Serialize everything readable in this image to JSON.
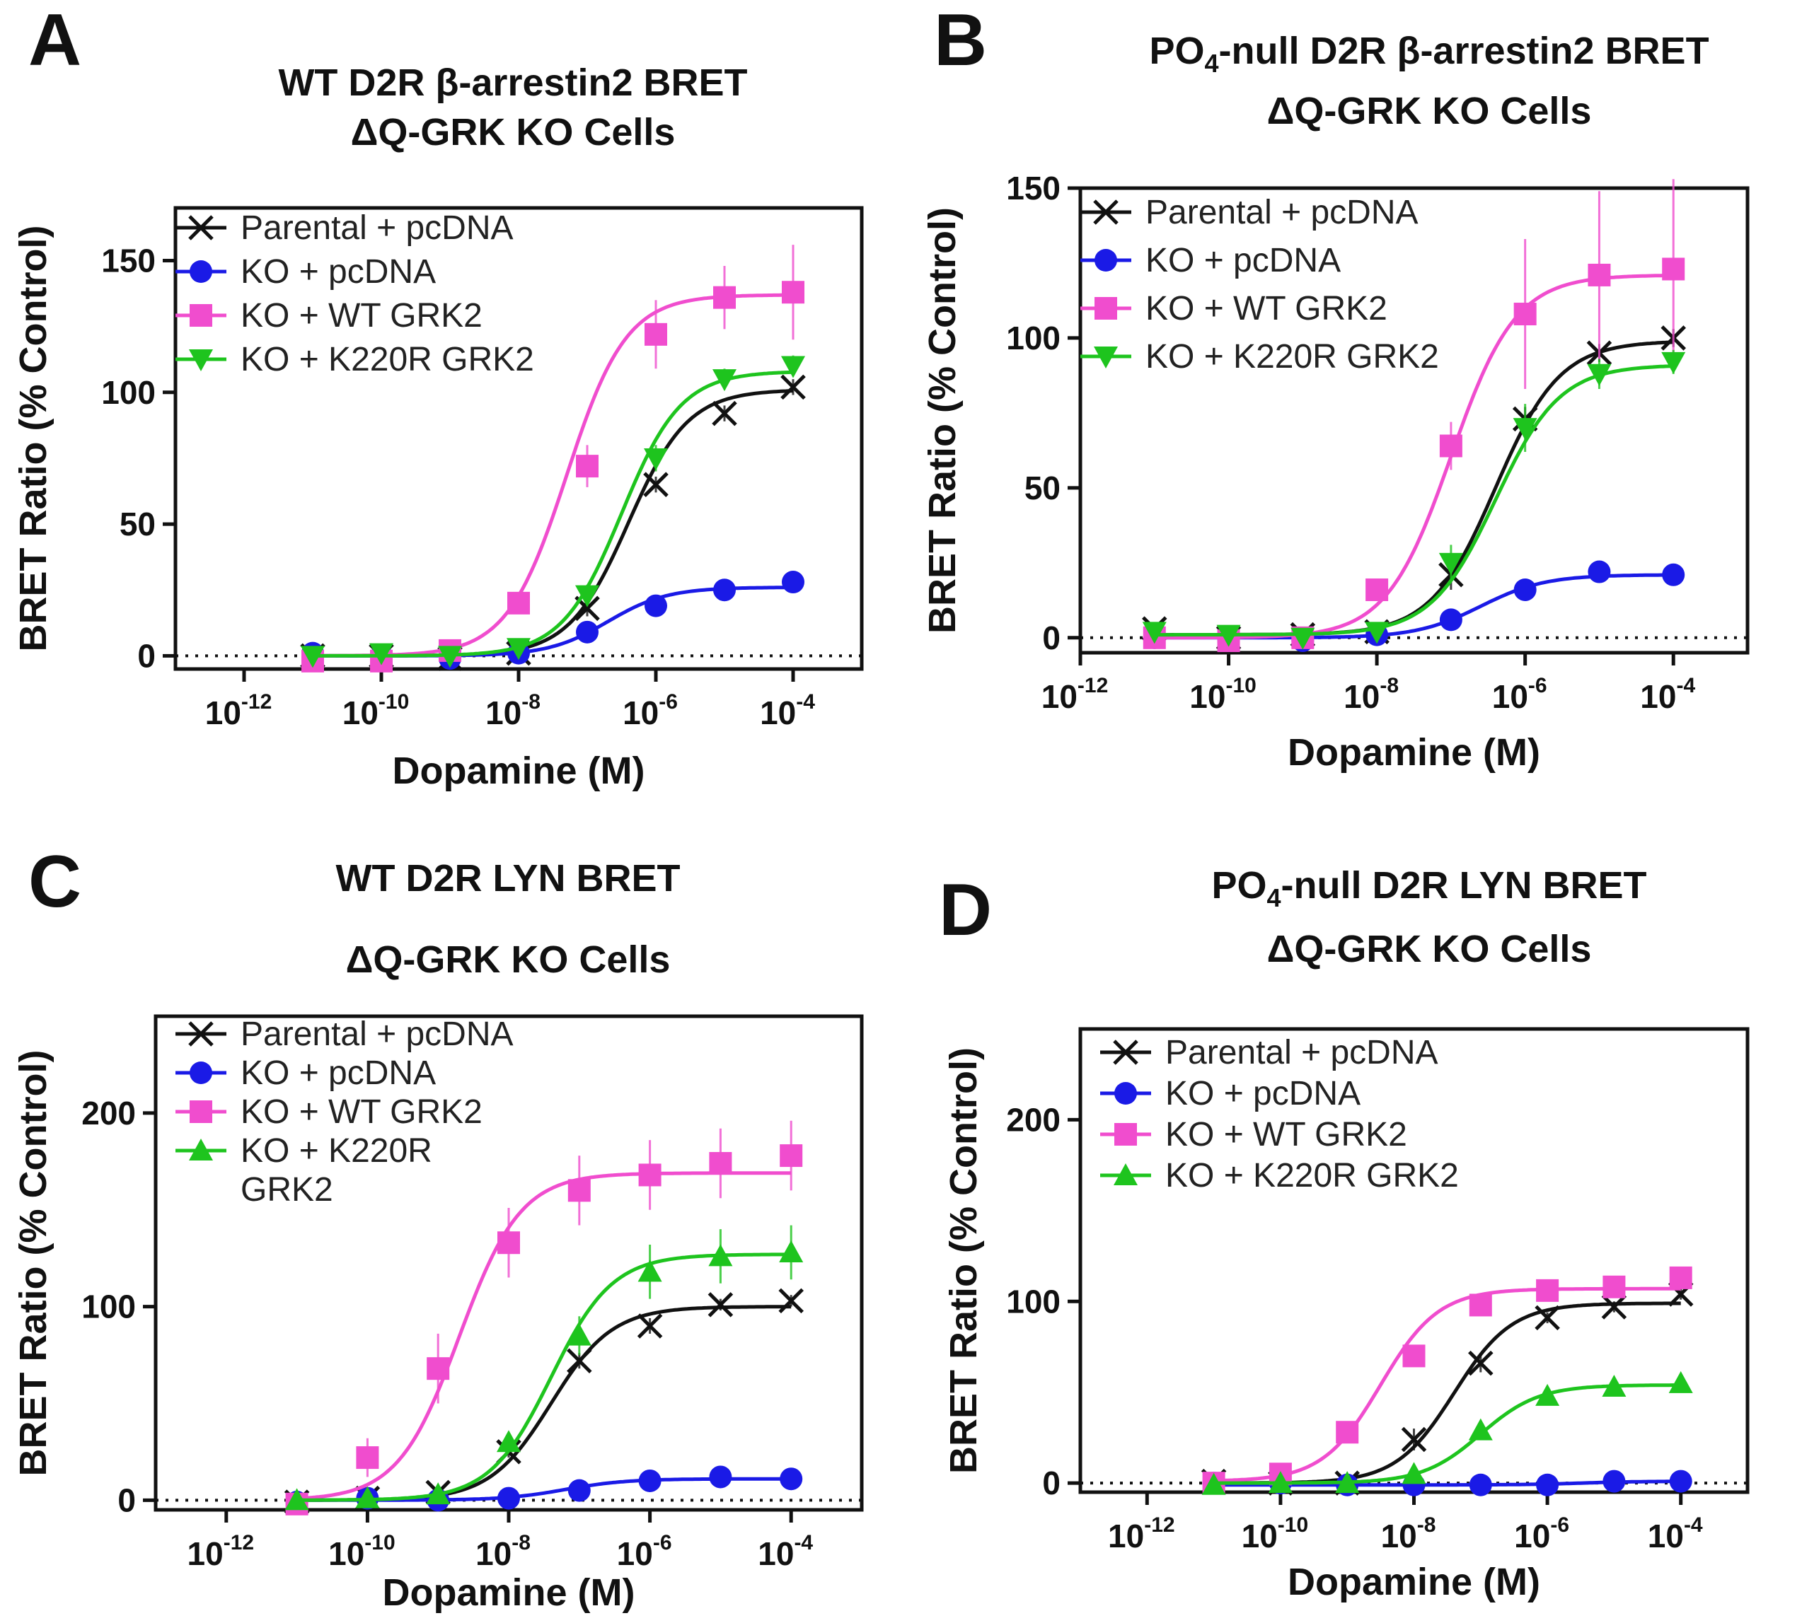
{
  "chart_data": [
    {
      "panel": "A",
      "type": "line",
      "title_lines": [
        "WT D2R β-arrestin2 BRET",
        "ΔQ-GRK KO Cells"
      ],
      "xlabel": "Dopamine (M)",
      "ylabel": "BRET Ratio (% Control)",
      "x_scale": "log10",
      "xlim": [
        -13,
        -3
      ],
      "ylim": [
        -5,
        170
      ],
      "y_ticks": [
        0,
        50,
        100,
        150
      ],
      "x_ticks": [
        -12,
        -10,
        -8,
        -6,
        -4
      ],
      "tick_base": "10",
      "reference_line_y": 0,
      "series": [
        {
          "name": "Parental + pcDNA",
          "marker": "x",
          "color": "#111111",
          "x": [
            -11,
            -10,
            -9,
            -8,
            -7,
            -6,
            -5,
            -4
          ],
          "y": [
            0,
            0,
            -1,
            1,
            18,
            65,
            92,
            102
          ],
          "error": [
            1,
            1,
            1,
            1,
            3,
            3,
            3,
            3
          ],
          "fit": {
            "bottom": 0,
            "top": 101,
            "logEC50": -6.4,
            "hill": 1.0
          }
        },
        {
          "name": "KO + pcDNA",
          "marker": "circle",
          "color": "#1a1ae6",
          "x": [
            -11,
            -10,
            -9,
            -8,
            -7,
            -6,
            -5,
            -4
          ],
          "y": [
            1,
            0,
            -1,
            1,
            9,
            19,
            25,
            28
          ],
          "error": [
            1,
            1,
            1,
            1,
            2,
            2,
            2,
            2
          ],
          "fit": {
            "bottom": 0,
            "top": 26,
            "logEC50": -6.7,
            "hill": 1.0
          }
        },
        {
          "name": "KO + WT GRK2",
          "marker": "square",
          "color": "#f04dce",
          "x": [
            -11,
            -10,
            -9,
            -8,
            -7,
            -6,
            -5,
            -4
          ],
          "y": [
            -2,
            -2,
            2,
            20,
            72,
            122,
            136,
            138
          ],
          "error": [
            2,
            2,
            2,
            3,
            8,
            13,
            12,
            18
          ],
          "fit": {
            "bottom": 0,
            "top": 137,
            "logEC50": -7.3,
            "hill": 1.0
          }
        },
        {
          "name": "KO + K220R GRK2",
          "marker": "triangle-down",
          "color": "#1ec41e",
          "x": [
            -11,
            -10,
            -9,
            -8,
            -7,
            -6,
            -5,
            -4
          ],
          "y": [
            0,
            1,
            0,
            3,
            23,
            75,
            105,
            110
          ],
          "error": [
            1,
            1,
            1,
            2,
            4,
            5,
            4,
            4
          ],
          "fit": {
            "bottom": 0,
            "top": 108,
            "logEC50": -6.5,
            "hill": 1.0
          }
        }
      ]
    },
    {
      "panel": "B",
      "type": "line",
      "title_lines": [
        "PO4-null D2R β-arrestin2 BRET",
        "ΔQ-GRK KO Cells"
      ],
      "xlabel": "Dopamine (M)",
      "ylabel": "BRET Ratio (% Control)",
      "x_scale": "log10",
      "xlim": [
        -12,
        -3
      ],
      "ylim": [
        -5,
        150
      ],
      "y_ticks": [
        0,
        50,
        100,
        150
      ],
      "x_ticks": [
        -12,
        -10,
        -8,
        -6,
        -4
      ],
      "tick_base": "10",
      "reference_line_y": 0,
      "series": [
        {
          "name": "Parental + pcDNA",
          "marker": "x",
          "color": "#111111",
          "x": [
            -11,
            -10,
            -9,
            -8,
            -7,
            -6,
            -5,
            -4
          ],
          "y": [
            3,
            0,
            1,
            2,
            21,
            73,
            95,
            100
          ],
          "error": [
            1,
            1,
            1,
            2,
            5,
            4,
            3,
            3
          ],
          "fit": {
            "bottom": 1,
            "top": 99,
            "logEC50": -6.4,
            "hill": 1.0
          }
        },
        {
          "name": "KO + pcDNA",
          "marker": "circle",
          "color": "#1a1ae6",
          "x": [
            -11,
            -10,
            -9,
            -8,
            -7,
            -6,
            -5,
            -4
          ],
          "y": [
            0,
            -1,
            -1,
            1,
            6,
            16,
            22,
            21
          ],
          "error": [
            1,
            1,
            1,
            1,
            1,
            2,
            2,
            2
          ],
          "fit": {
            "bottom": 0,
            "top": 21,
            "logEC50": -6.6,
            "hill": 1.0
          }
        },
        {
          "name": "KO + WT GRK2",
          "marker": "square",
          "color": "#f04dce",
          "x": [
            -11,
            -10,
            -9,
            -8,
            -7,
            -6,
            -5,
            -4
          ],
          "y": [
            0,
            -1,
            0,
            16,
            64,
            108,
            121,
            123
          ],
          "error": [
            2,
            2,
            1,
            3,
            8,
            25,
            28,
            30
          ],
          "fit": {
            "bottom": 0,
            "top": 121,
            "logEC50": -7.0,
            "hill": 1.0
          }
        },
        {
          "name": "KO + K220R GRK2",
          "marker": "triangle-down",
          "color": "#1ec41e",
          "x": [
            -11,
            -10,
            -9,
            -8,
            -7,
            -6,
            -5,
            -4
          ],
          "y": [
            2,
            1,
            0,
            2,
            25,
            70,
            88,
            92
          ],
          "error": [
            1,
            1,
            1,
            2,
            6,
            8,
            5,
            4
          ],
          "fit": {
            "bottom": 1,
            "top": 91,
            "logEC50": -6.4,
            "hill": 1.0
          }
        }
      ]
    },
    {
      "panel": "C",
      "type": "line",
      "title_lines": [
        "WT D2R LYN BRET",
        "ΔQ-GRK KO Cells"
      ],
      "xlabel": "Dopamine (M)",
      "ylabel": "BRET Ratio (% Control)",
      "x_scale": "log10",
      "xlim": [
        -13,
        -3
      ],
      "ylim": [
        -5,
        250
      ],
      "y_ticks": [
        0,
        100,
        200
      ],
      "x_ticks": [
        -12,
        -10,
        -8,
        -6,
        -4
      ],
      "tick_base": "10",
      "reference_line_y": 0,
      "series": [
        {
          "name": "Parental + pcDNA",
          "marker": "x",
          "color": "#111111",
          "x": [
            -11,
            -10,
            -9,
            -8,
            -7,
            -6,
            -5,
            -4
          ],
          "y": [
            -1,
            1,
            4,
            25,
            72,
            90,
            101,
            103
          ],
          "error": [
            1,
            1,
            2,
            3,
            4,
            4,
            3,
            3
          ],
          "fit": {
            "bottom": 0,
            "top": 100,
            "logEC50": -7.4,
            "hill": 1.0
          }
        },
        {
          "name": "KO + pcDNA",
          "marker": "circle",
          "color": "#1a1ae6",
          "x": [
            -11,
            -10,
            -9,
            -8,
            -7,
            -6,
            -5,
            -4
          ],
          "y": [
            -1,
            1,
            0,
            1,
            5,
            10,
            12,
            11
          ],
          "error": [
            1,
            1,
            1,
            1,
            1,
            1,
            1,
            1
          ],
          "fit": {
            "bottom": 0,
            "top": 11,
            "logEC50": -7.2,
            "hill": 1.0
          }
        },
        {
          "name": "KO + WT GRK2",
          "marker": "square",
          "color": "#f04dce",
          "x": [
            -11,
            -10,
            -9,
            -8,
            -7,
            -6,
            -5,
            -4
          ],
          "y": [
            -2,
            22,
            68,
            133,
            160,
            168,
            174,
            178
          ],
          "error": [
            2,
            10,
            18,
            18,
            18,
            18,
            18,
            18
          ],
          "fit": {
            "bottom": 0,
            "top": 169,
            "logEC50": -8.7,
            "hill": 1.0
          }
        },
        {
          "name": "KO + K220R GRK2",
          "marker": "triangle-up",
          "color": "#1ec41e",
          "x": [
            -11,
            -10,
            -9,
            -8,
            -7,
            -6,
            -5,
            -4
          ],
          "y": [
            0,
            1,
            3,
            30,
            85,
            118,
            126,
            128
          ],
          "error": [
            1,
            1,
            2,
            5,
            10,
            14,
            14,
            14
          ],
          "fit": {
            "bottom": 0,
            "top": 127,
            "logEC50": -7.4,
            "hill": 1.0
          }
        }
      ]
    },
    {
      "panel": "D",
      "type": "line",
      "title_lines": [
        "PO4-null D2R LYN BRET",
        "ΔQ-GRK KO Cells"
      ],
      "xlabel": "Dopamine (M)",
      "ylabel": "BRET Ratio (% Control)",
      "x_scale": "log10",
      "xlim": [
        -13,
        -3
      ],
      "ylim": [
        -5,
        250
      ],
      "y_ticks": [
        0,
        100,
        200
      ],
      "x_ticks": [
        -12,
        -10,
        -8,
        -6,
        -4
      ],
      "tick_base": "10",
      "reference_line_y": 0,
      "series": [
        {
          "name": "Parental + pcDNA",
          "marker": "x",
          "color": "#111111",
          "x": [
            -11,
            -10,
            -9,
            -8,
            -7,
            -6,
            -5,
            -4
          ],
          "y": [
            1,
            0,
            0,
            24,
            66,
            91,
            97,
            104
          ],
          "error": [
            1,
            1,
            1,
            6,
            5,
            3,
            3,
            3
          ],
          "fit": {
            "bottom": 0,
            "top": 99,
            "logEC50": -7.4,
            "hill": 1.0
          }
        },
        {
          "name": "KO + pcDNA",
          "marker": "circle",
          "color": "#1a1ae6",
          "x": [
            -11,
            -10,
            -9,
            -8,
            -7,
            -6,
            -5,
            -4
          ],
          "y": [
            0,
            0,
            -1,
            -1,
            -1,
            -1,
            1,
            1
          ],
          "error": [
            1,
            1,
            1,
            1,
            1,
            1,
            1,
            1
          ],
          "fit": {
            "bottom": -1,
            "top": 1,
            "logEC50": -5.5,
            "hill": 1.0
          }
        },
        {
          "name": "KO + WT GRK2",
          "marker": "square",
          "color": "#f04dce",
          "x": [
            -11,
            -10,
            -9,
            -8,
            -7,
            -6,
            -5,
            -4
          ],
          "y": [
            0,
            5,
            28,
            70,
            98,
            106,
            108,
            113
          ],
          "error": [
            2,
            2,
            3,
            5,
            6,
            6,
            6,
            6
          ],
          "fit": {
            "bottom": 1,
            "top": 107,
            "logEC50": -8.5,
            "hill": 1.0
          }
        },
        {
          "name": "KO + K220R GRK2",
          "marker": "triangle-up",
          "color": "#1ec41e",
          "x": [
            -11,
            -10,
            -9,
            -8,
            -7,
            -6,
            -5,
            -4
          ],
          "y": [
            -1,
            0,
            0,
            5,
            29,
            48,
            53,
            55
          ],
          "error": [
            1,
            1,
            1,
            2,
            3,
            3,
            3,
            3
          ],
          "fit": {
            "bottom": 0,
            "top": 54,
            "logEC50": -7.0,
            "hill": 1.0
          }
        }
      ]
    }
  ],
  "legend_line_breaks": {
    "C": {
      "3": [
        "KO + K220R",
        "GRK2"
      ]
    }
  },
  "subscripts": {
    "PO4": {
      "base": "PO",
      "sub": "4"
    }
  },
  "colors": {
    "axis": "#111111",
    "parental": "#111111",
    "ko": "#1a1ae6",
    "wt_grk2": "#f04dce",
    "k220r": "#1ec41e"
  }
}
